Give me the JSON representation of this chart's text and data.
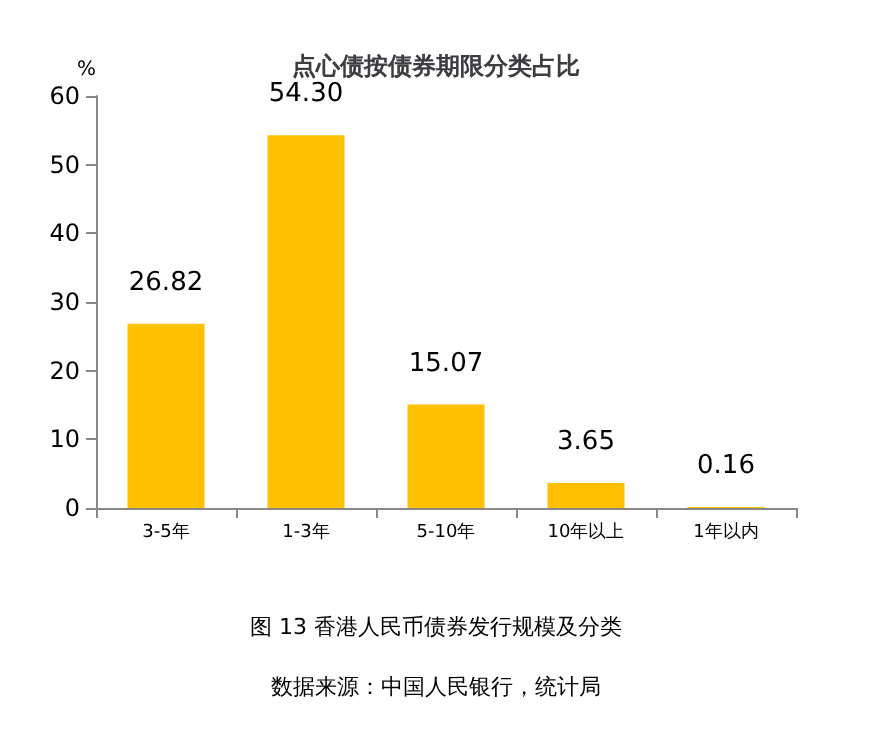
{
  "chart_data": {
    "type": "bar",
    "title": "点心债按债券期限分类占比",
    "ylabel": "%",
    "categories": [
      "3-5年",
      "1-3年",
      "5-10年",
      "10年以上",
      "1年以内"
    ],
    "values": [
      26.82,
      54.3,
      15.07,
      3.65,
      0.16
    ],
    "value_labels": [
      "26.82",
      "54.30",
      "15.07",
      "3.65",
      "0.16"
    ],
    "color": "#ffc000",
    "ylim": [
      0,
      60
    ],
    "yticks": [
      0,
      10,
      20,
      30,
      40,
      50,
      60
    ],
    "grid": false,
    "annotations": [
      "图 13 香港人民币债券发行规模及分类",
      "数据来源：中国人民银行，统计局"
    ]
  }
}
